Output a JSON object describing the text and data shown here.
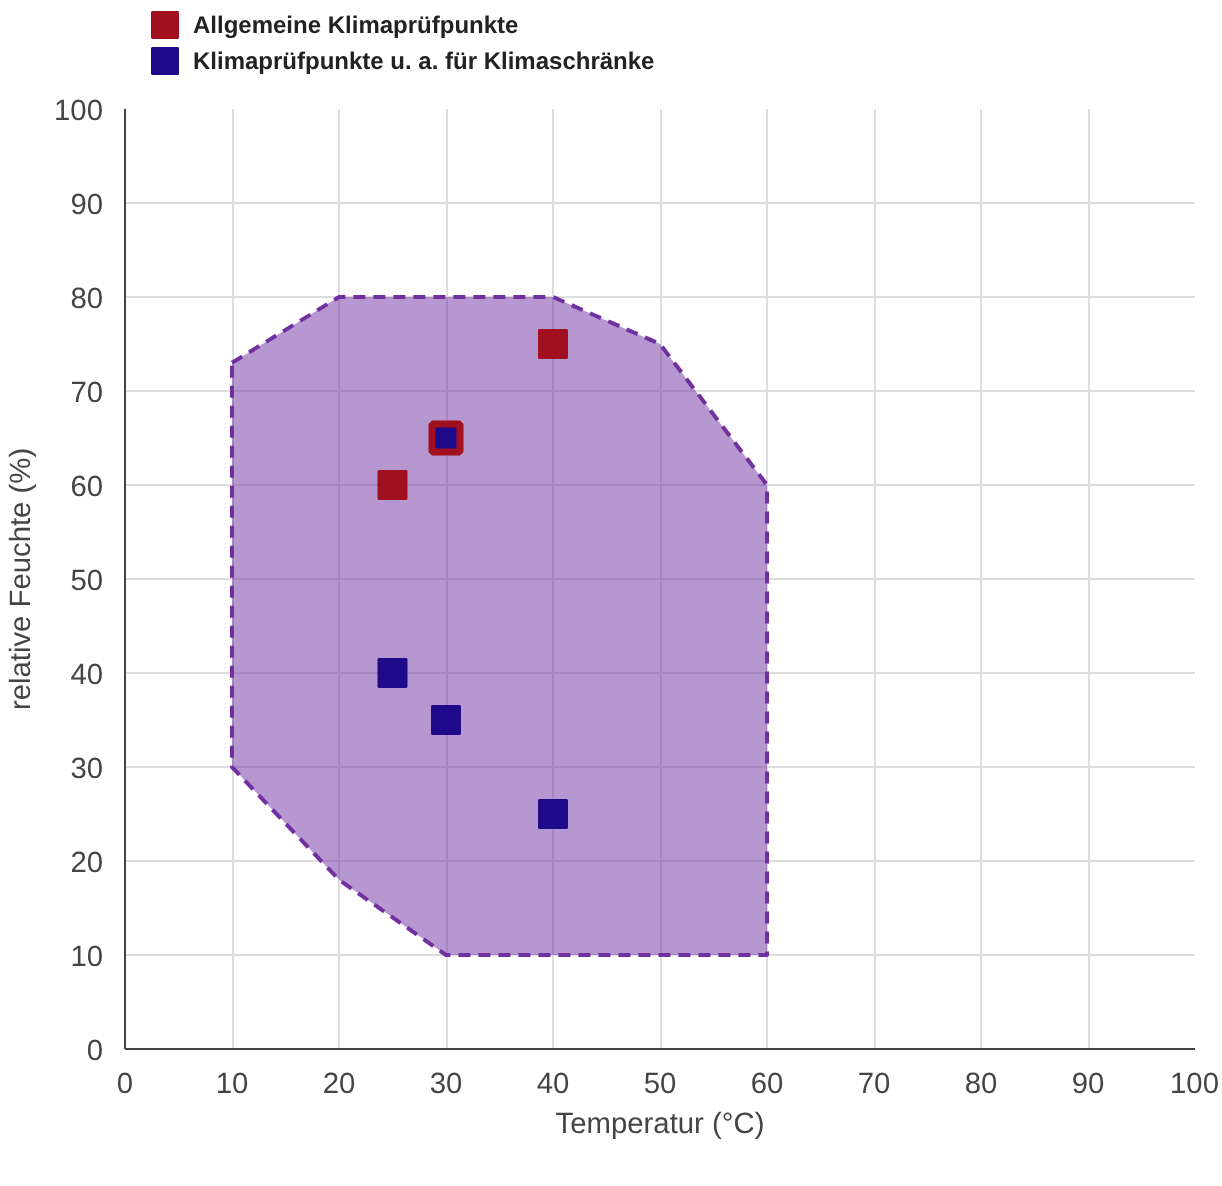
{
  "chart_data": {
    "type": "scatter",
    "xlabel": "Temperatur (°C)",
    "ylabel": "relative Feuchte (%)",
    "xlim": [
      0,
      100
    ],
    "ylim": [
      0,
      100
    ],
    "xticks": [
      0,
      10,
      20,
      30,
      40,
      50,
      60,
      70,
      80,
      90,
      100
    ],
    "yticks": [
      0,
      10,
      20,
      30,
      40,
      50,
      60,
      70,
      80,
      90,
      100
    ],
    "grid": true,
    "legend": "top left",
    "series": [
      {
        "type": "area",
        "color": "#7030a0",
        "line_style": "dashed",
        "x": [
          10,
          20,
          40,
          50,
          60,
          60,
          30,
          20,
          10
        ],
        "values": [
          73,
          80,
          80,
          75,
          60,
          10,
          10,
          18,
          30
        ]
      },
      {
        "name": "Klimaprüfpunkte u. a. für Klimaschränke",
        "color": "#1f0a8c",
        "marker": "square",
        "x": [
          25,
          30,
          40,
          30
        ],
        "values": [
          40,
          35,
          25,
          65
        ]
      },
      {
        "name": "Allgemeine Klimaprüfpunkte",
        "color": "#a0101e",
        "marker": "square",
        "x": [
          25,
          30,
          40
        ],
        "values": [
          60,
          65,
          75
        ]
      }
    ]
  }
}
